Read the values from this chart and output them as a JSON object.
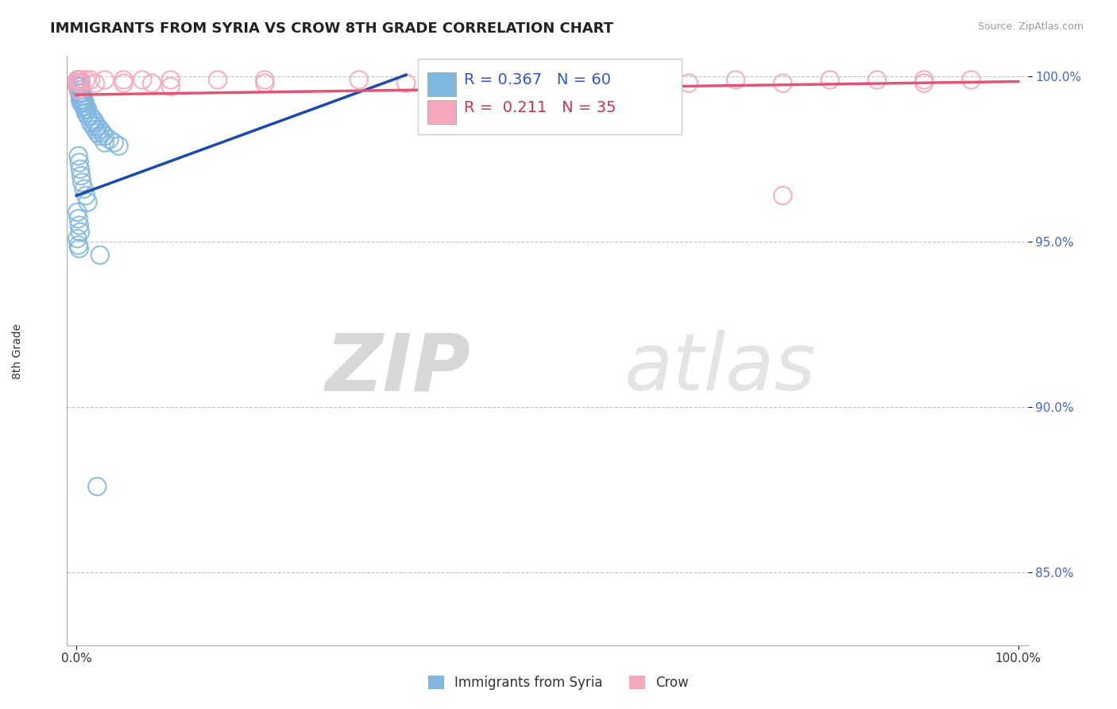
{
  "title": "IMMIGRANTS FROM SYRIA VS CROW 8TH GRADE CORRELATION CHART",
  "ylabel": "8th Grade",
  "source_text": "Source: ZipAtlas.com",
  "watermark_zip": "ZIP",
  "watermark_atlas": "atlas",
  "legend_labels": [
    "Immigrants from Syria",
    "Crow"
  ],
  "r_blue": "0.367",
  "n_blue": 60,
  "r_pink": "0.211",
  "n_pink": 35,
  "blue_color": "#80b8e0",
  "pink_color": "#f5a8bc",
  "blue_line_color": "#1a4aaa",
  "pink_line_color": "#e05575",
  "blue_scatter": [
    [
      0.001,
      0.999
    ],
    [
      0.001,
      0.998
    ],
    [
      0.002,
      0.999
    ],
    [
      0.001,
      0.997
    ],
    [
      0.002,
      0.997
    ],
    [
      0.002,
      0.996
    ],
    [
      0.003,
      0.998
    ],
    [
      0.003,
      0.996
    ],
    [
      0.003,
      0.995
    ],
    [
      0.004,
      0.997
    ],
    [
      0.004,
      0.995
    ],
    [
      0.004,
      0.993
    ],
    [
      0.005,
      0.996
    ],
    [
      0.005,
      0.994
    ],
    [
      0.005,
      0.992
    ],
    [
      0.006,
      0.995
    ],
    [
      0.006,
      0.993
    ],
    [
      0.007,
      0.994
    ],
    [
      0.007,
      0.992
    ],
    [
      0.008,
      0.993
    ],
    [
      0.008,
      0.991
    ],
    [
      0.009,
      0.992
    ],
    [
      0.009,
      0.99
    ],
    [
      0.01,
      0.991
    ],
    [
      0.01,
      0.989
    ],
    [
      0.012,
      0.99
    ],
    [
      0.012,
      0.988
    ],
    [
      0.015,
      0.988
    ],
    [
      0.015,
      0.986
    ],
    [
      0.018,
      0.987
    ],
    [
      0.018,
      0.985
    ],
    [
      0.02,
      0.986
    ],
    [
      0.02,
      0.984
    ],
    [
      0.022,
      0.985
    ],
    [
      0.022,
      0.983
    ],
    [
      0.025,
      0.984
    ],
    [
      0.025,
      0.982
    ],
    [
      0.028,
      0.983
    ],
    [
      0.03,
      0.982
    ],
    [
      0.03,
      0.98
    ],
    [
      0.035,
      0.981
    ],
    [
      0.04,
      0.98
    ],
    [
      0.045,
      0.979
    ],
    [
      0.002,
      0.976
    ],
    [
      0.003,
      0.974
    ],
    [
      0.004,
      0.972
    ],
    [
      0.005,
      0.97
    ],
    [
      0.006,
      0.968
    ],
    [
      0.008,
      0.966
    ],
    [
      0.01,
      0.964
    ],
    [
      0.012,
      0.962
    ],
    [
      0.001,
      0.959
    ],
    [
      0.002,
      0.957
    ],
    [
      0.003,
      0.955
    ],
    [
      0.004,
      0.953
    ],
    [
      0.001,
      0.951
    ],
    [
      0.002,
      0.949
    ],
    [
      0.003,
      0.948
    ],
    [
      0.025,
      0.946
    ],
    [
      0.022,
      0.876
    ]
  ],
  "pink_scatter": [
    [
      0.001,
      0.999
    ],
    [
      0.002,
      0.999
    ],
    [
      0.001,
      0.998
    ],
    [
      0.003,
      0.999
    ],
    [
      0.005,
      0.999
    ],
    [
      0.005,
      0.998
    ],
    [
      0.01,
      0.999
    ],
    [
      0.015,
      0.999
    ],
    [
      0.02,
      0.998
    ],
    [
      0.03,
      0.999
    ],
    [
      0.05,
      0.999
    ],
    [
      0.05,
      0.998
    ],
    [
      0.07,
      0.999
    ],
    [
      0.08,
      0.998
    ],
    [
      0.1,
      0.999
    ],
    [
      0.1,
      0.997
    ],
    [
      0.15,
      0.999
    ],
    [
      0.2,
      0.999
    ],
    [
      0.2,
      0.998
    ],
    [
      0.3,
      0.999
    ],
    [
      0.35,
      0.998
    ],
    [
      0.4,
      0.999
    ],
    [
      0.5,
      0.999
    ],
    [
      0.55,
      0.998
    ],
    [
      0.6,
      0.999
    ],
    [
      0.65,
      0.998
    ],
    [
      0.7,
      0.999
    ],
    [
      0.75,
      0.998
    ],
    [
      0.8,
      0.999
    ],
    [
      0.85,
      0.999
    ],
    [
      0.9,
      0.999
    ],
    [
      0.9,
      0.998
    ],
    [
      0.95,
      0.999
    ],
    [
      0.75,
      0.964
    ],
    [
      0.002,
      0.996
    ]
  ],
  "blue_trend_x": [
    0.0,
    0.35
  ],
  "blue_trend_y": [
    0.964,
    1.0005
  ],
  "pink_trend_x": [
    0.0,
    1.0
  ],
  "pink_trend_y": [
    0.9945,
    0.9985
  ],
  "xlim": [
    -0.01,
    1.01
  ],
  "ylim": [
    0.828,
    1.006
  ],
  "yticks": [
    0.85,
    0.9,
    0.95,
    1.0
  ],
  "ytick_labels": [
    "85.0%",
    "90.0%",
    "95.0%",
    "100.0%"
  ],
  "xticks": [
    0.0,
    1.0
  ],
  "xtick_labels": [
    "0.0%",
    "100.0%"
  ],
  "grid_color": "#bbbbbb",
  "background_color": "#ffffff",
  "title_fontsize": 13,
  "axis_label_fontsize": 10,
  "tick_fontsize": 11,
  "legend_fontsize": 12,
  "r_label_fontsize": 14
}
